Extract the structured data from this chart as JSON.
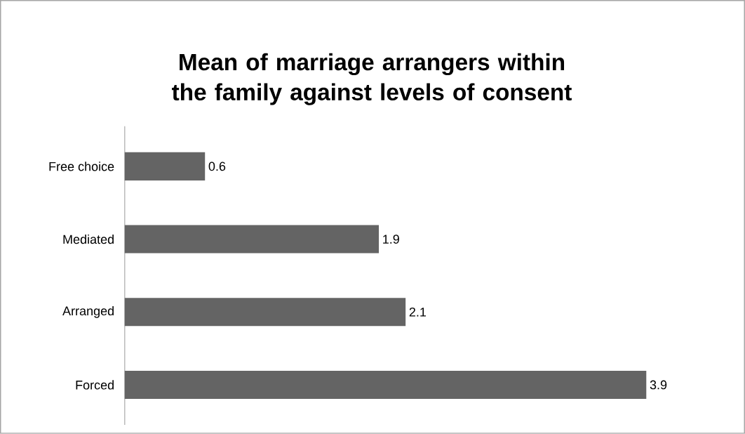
{
  "chart_data": {
    "type": "bar",
    "orientation": "horizontal",
    "title": "Mean of marriage arrangers within the family against levels of consent",
    "categories": [
      "Free choice",
      "Mediated",
      "Arranged",
      "Forced"
    ],
    "values": [
      0.6,
      1.9,
      2.1,
      3.9
    ],
    "color": "#646464",
    "data_labels": true
  }
}
